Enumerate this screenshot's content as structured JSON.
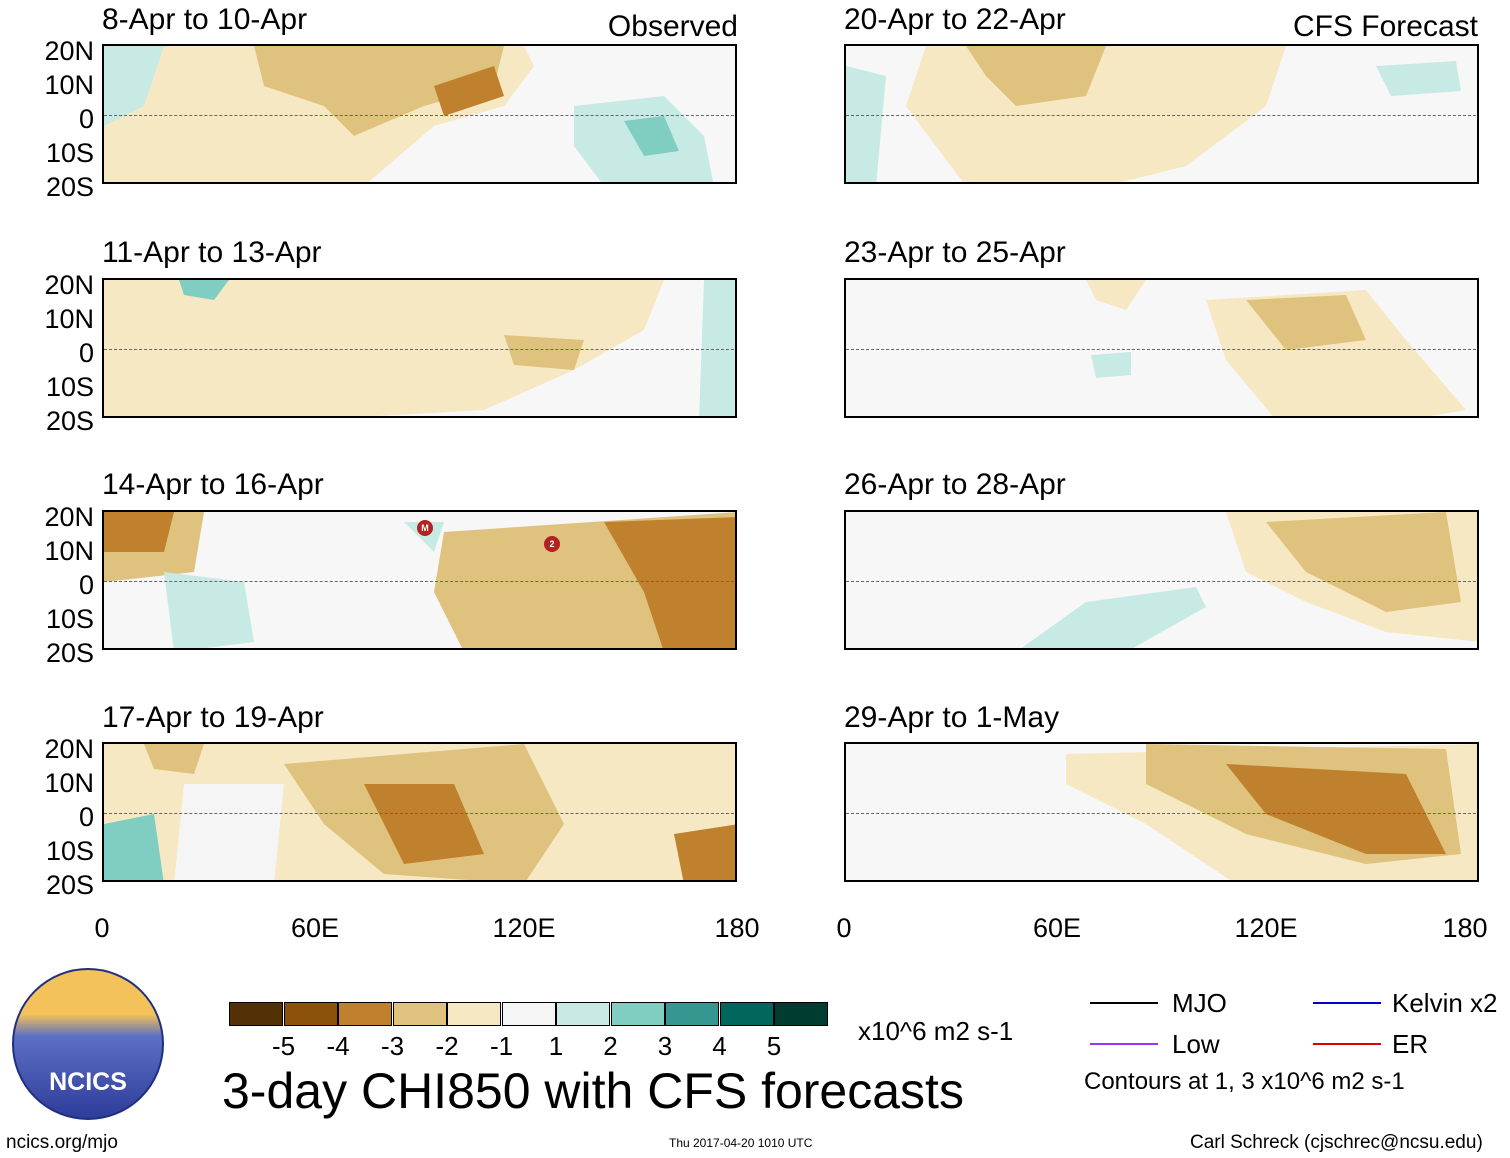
{
  "left_column": {
    "corner_label": "Observed",
    "panels": [
      {
        "period": "8-Apr to 10-Apr"
      },
      {
        "period": "11-Apr to 13-Apr"
      },
      {
        "period": "14-Apr to 16-Apr"
      },
      {
        "period": "17-Apr to 19-Apr"
      }
    ]
  },
  "right_column": {
    "corner_label": "CFS Forecast",
    "panels": [
      {
        "period": "20-Apr to 22-Apr"
      },
      {
        "period": "23-Apr to 25-Apr"
      },
      {
        "period": "26-Apr to 28-Apr"
      },
      {
        "period": "29-Apr to 1-May"
      }
    ]
  },
  "lat_labels": [
    "20N",
    "10N",
    "0",
    "10S",
    "20S"
  ],
  "lon_labels": [
    "0",
    "60E",
    "120E",
    "180"
  ],
  "markers": [
    {
      "label": "M",
      "column": "left",
      "panel": 2
    },
    {
      "label": "2",
      "column": "left",
      "panel": 2
    }
  ],
  "colorbar": {
    "ticks": [
      "-5",
      "-4",
      "-3",
      "-2",
      "-1",
      "1",
      "2",
      "3",
      "4",
      "5"
    ],
    "units": "x10^6 m2 s-1",
    "colors": [
      "#543005",
      "#8c510a",
      "#bf812d",
      "#dfc27d",
      "#f6e8c3",
      "#f5f5f5",
      "#c7eae5",
      "#80cdc1",
      "#35978f",
      "#01665e",
      "#003c30"
    ]
  },
  "main_title": "3-day CHI850 with CFS forecasts",
  "legend": {
    "items": [
      {
        "label": "MJO",
        "color": "#000000"
      },
      {
        "label": "Kelvin x2",
        "color": "#0000cc"
      },
      {
        "label": "Low",
        "color": "#9b30ff"
      },
      {
        "label": "ER",
        "color": "#dd0000"
      }
    ],
    "note": "Contours at 1, 3 x10^6 m2 s-1"
  },
  "logo": {
    "text": "NCICS"
  },
  "footer": {
    "website": "ncics.org/mjo",
    "timestamp": "Thu 2017-04-20 1010 UTC",
    "credit": "Carl Schreck (cjschrec@ncsu.edu)"
  }
}
